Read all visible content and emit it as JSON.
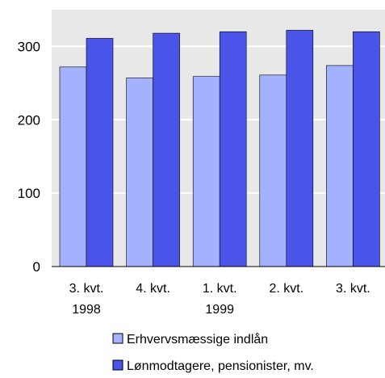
{
  "chart_data": {
    "type": "bar",
    "categories": [
      [
        "3. kvt.",
        "1998"
      ],
      [
        "4. kvt.",
        ""
      ],
      [
        "1. kvt.",
        "1999"
      ],
      [
        "2. kvt.",
        ""
      ],
      [
        "3. kvt.",
        ""
      ]
    ],
    "series": [
      {
        "name": "Erhvervsmæssige indlån",
        "values": [
          272,
          257,
          259,
          261,
          274
        ],
        "color": "#A3B2FF"
      },
      {
        "name": "Lønmodtagere, pensionister, mv.",
        "values": [
          311,
          318,
          320,
          322,
          320
        ],
        "color": "#4A54E8"
      }
    ],
    "yticks": [
      0,
      100,
      200,
      300
    ],
    "ylim": [
      0,
      350
    ],
    "grid": true,
    "grid_color": "#ffffff",
    "plot_background": "#E8E8E8",
    "legend_position": "bottom"
  }
}
